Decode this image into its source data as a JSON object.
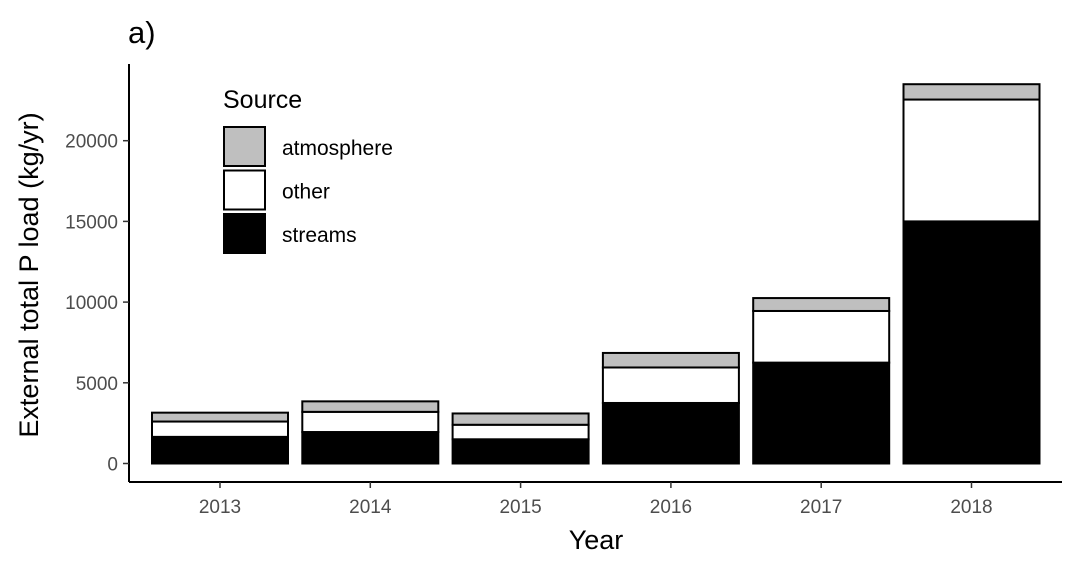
{
  "chart_data": {
    "type": "bar",
    "stacked": true,
    "panel_tag": "a)",
    "xlabel": "Year",
    "ylabel": "External total P load (kg/yr)",
    "ylim": [
      0,
      24500
    ],
    "yticks": [
      0,
      5000,
      10000,
      15000,
      20000
    ],
    "ytick_labels": [
      "0",
      "5000",
      "10000",
      "15000",
      "20000"
    ],
    "categories": [
      "2013",
      "2014",
      "2015",
      "2016",
      "2017",
      "2018"
    ],
    "series": [
      {
        "name": "streams",
        "color": "#000000",
        "values": [
          1650,
          1950,
          1500,
          3750,
          6250,
          15000
        ]
      },
      {
        "name": "other",
        "color": "#ffffff",
        "values": [
          950,
          1250,
          900,
          2200,
          3200,
          7550
        ]
      },
      {
        "name": "atmosphere",
        "color": "#bfbfbf",
        "values": [
          550,
          650,
          700,
          900,
          800,
          950
        ]
      }
    ],
    "legend": {
      "title": "Source",
      "position": "top-left",
      "entries": [
        {
          "label": "atmosphere",
          "color": "#bfbfbf"
        },
        {
          "label": "other",
          "color": "#ffffff"
        },
        {
          "label": "streams",
          "color": "#000000"
        }
      ]
    },
    "grid": false
  }
}
